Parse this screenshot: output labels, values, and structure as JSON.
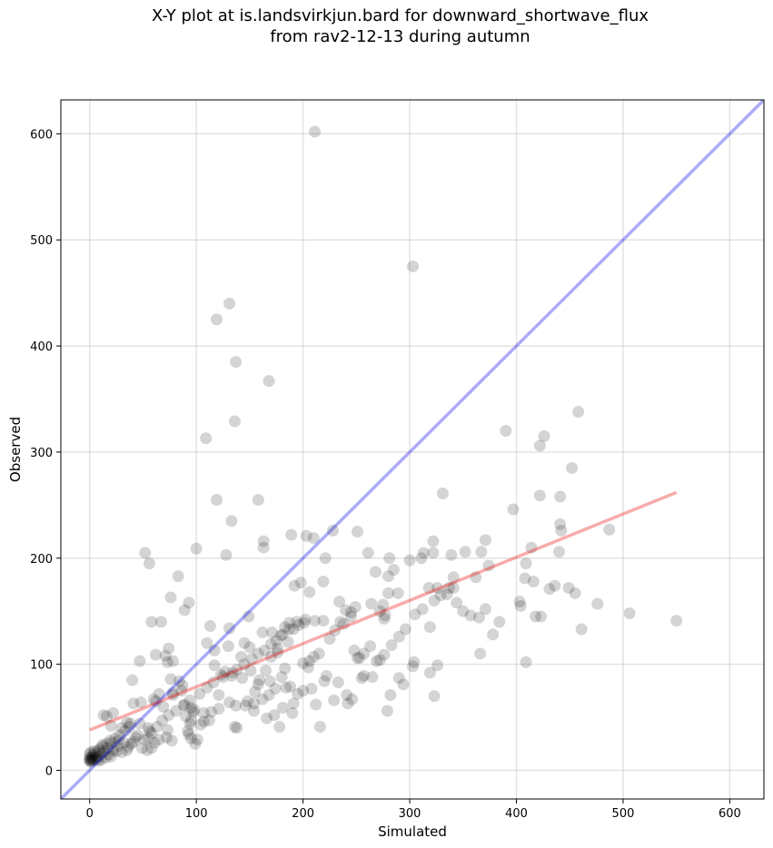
{
  "title_line1": "X-Y plot at is.landsvirkjun.bard for downward_shortwave_flux",
  "title_line2": "from rav2-12-13 during autumn",
  "chart_data": {
    "type": "scatter",
    "xlabel": "Simulated",
    "ylabel": "Observed",
    "xlim": [
      -27,
      632
    ],
    "ylim": [
      -27,
      632
    ],
    "xticks": [
      0,
      100,
      200,
      300,
      400,
      500,
      600
    ],
    "yticks": [
      0,
      100,
      200,
      300,
      400,
      500,
      600
    ],
    "grid": true,
    "colors": {
      "points": "#000000",
      "identity_line": "#0000ee",
      "fit_line": "#ee0000"
    },
    "identity_line": {
      "x": [
        -27,
        632
      ],
      "y": [
        -27,
        632
      ]
    },
    "fit_line": {
      "x": [
        0,
        550
      ],
      "y": [
        38,
        262
      ]
    },
    "points": [
      [
        211,
        602
      ],
      [
        303,
        475
      ],
      [
        131,
        440
      ],
      [
        119,
        425
      ],
      [
        137,
        385
      ],
      [
        168,
        367
      ],
      [
        136,
        329
      ],
      [
        109,
        313
      ],
      [
        458,
        338
      ],
      [
        390,
        320
      ],
      [
        426,
        315
      ],
      [
        422,
        306
      ],
      [
        452,
        285
      ],
      [
        397,
        246
      ],
      [
        422,
        259
      ],
      [
        441,
        258
      ],
      [
        331,
        261
      ],
      [
        119,
        255
      ],
      [
        158,
        255
      ],
      [
        133,
        235
      ],
      [
        441,
        232
      ],
      [
        442,
        226
      ],
      [
        228,
        226
      ],
      [
        251,
        225
      ],
      [
        487,
        227
      ],
      [
        163,
        216
      ],
      [
        163,
        210
      ],
      [
        189,
        222
      ],
      [
        203,
        221
      ],
      [
        210,
        219
      ],
      [
        371,
        217
      ],
      [
        322,
        216
      ],
      [
        414,
        210
      ],
      [
        100,
        209
      ],
      [
        52,
        205
      ],
      [
        56,
        195
      ],
      [
        128,
        203
      ],
      [
        221,
        200
      ],
      [
        261,
        205
      ],
      [
        281,
        200
      ],
      [
        300,
        198
      ],
      [
        311,
        200
      ],
      [
        313,
        205
      ],
      [
        322,
        205
      ],
      [
        339,
        203
      ],
      [
        352,
        206
      ],
      [
        367,
        206
      ],
      [
        409,
        195
      ],
      [
        440,
        206
      ],
      [
        374,
        193
      ],
      [
        408,
        181
      ],
      [
        416,
        178
      ],
      [
        362,
        182
      ],
      [
        341,
        182
      ],
      [
        318,
        172
      ],
      [
        326,
        172
      ],
      [
        341,
        172
      ],
      [
        335,
        166
      ],
      [
        323,
        160
      ],
      [
        289,
        167
      ],
      [
        280,
        167
      ],
      [
        268,
        187
      ],
      [
        280,
        183
      ],
      [
        285,
        189
      ],
      [
        192,
        174
      ],
      [
        198,
        177
      ],
      [
        206,
        168
      ],
      [
        219,
        178
      ],
      [
        234,
        159
      ],
      [
        249,
        154
      ],
      [
        245,
        149
      ],
      [
        240,
        151
      ],
      [
        275,
        156
      ],
      [
        264,
        157
      ],
      [
        272,
        150
      ],
      [
        277,
        146
      ],
      [
        276,
        143
      ],
      [
        235,
        140
      ],
      [
        219,
        141
      ],
      [
        211,
        141
      ],
      [
        202,
        142
      ],
      [
        201,
        139
      ],
      [
        196,
        137
      ],
      [
        187,
        139
      ],
      [
        183,
        135
      ],
      [
        191,
        133
      ],
      [
        179,
        127
      ],
      [
        186,
        121
      ],
      [
        176,
        115
      ],
      [
        176,
        111
      ],
      [
        170,
        107
      ],
      [
        162,
        130
      ],
      [
        171,
        130
      ],
      [
        149,
        145
      ],
      [
        145,
        120
      ],
      [
        150,
        116
      ],
      [
        131,
        134
      ],
      [
        113,
        136
      ],
      [
        83,
        183
      ],
      [
        93,
        158
      ],
      [
        89,
        151
      ],
      [
        76,
        163
      ],
      [
        58,
        140
      ],
      [
        67,
        140
      ],
      [
        71,
        108
      ],
      [
        73,
        102
      ],
      [
        62,
        109
      ],
      [
        74,
        115
      ],
      [
        78,
        103
      ],
      [
        87,
        80
      ],
      [
        76,
        86
      ],
      [
        84,
        84
      ],
      [
        86,
        75
      ],
      [
        65,
        72
      ],
      [
        60,
        67
      ],
      [
        40,
        85
      ],
      [
        47,
        103
      ],
      [
        41,
        63
      ],
      [
        48,
        64
      ],
      [
        62,
        65
      ],
      [
        69,
        60
      ],
      [
        78,
        71
      ],
      [
        78,
        73
      ],
      [
        89,
        62
      ],
      [
        95,
        59
      ],
      [
        97,
        55
      ],
      [
        95,
        47
      ],
      [
        90,
        51
      ],
      [
        94,
        44
      ],
      [
        104,
        43
      ],
      [
        112,
        47
      ],
      [
        114,
        55
      ],
      [
        121,
        58
      ],
      [
        137,
        61
      ],
      [
        131,
        64
      ],
      [
        148,
        65
      ],
      [
        154,
        63
      ],
      [
        162,
        67
      ],
      [
        155,
        74
      ],
      [
        168,
        71
      ],
      [
        174,
        77
      ],
      [
        188,
        79
      ],
      [
        184,
        78
      ],
      [
        191,
        63
      ],
      [
        181,
        59
      ],
      [
        190,
        54
      ],
      [
        200,
        75
      ],
      [
        208,
        77
      ],
      [
        220,
        84
      ],
      [
        233,
        83
      ],
      [
        241,
        71
      ],
      [
        246,
        67
      ],
      [
        257,
        89
      ],
      [
        255,
        87
      ],
      [
        265,
        88
      ],
      [
        290,
        87
      ],
      [
        294,
        81
      ],
      [
        303,
        98
      ],
      [
        304,
        102
      ],
      [
        319,
        92
      ],
      [
        326,
        99
      ],
      [
        323,
        70
      ],
      [
        279,
        56
      ],
      [
        282,
        71
      ],
      [
        216,
        41
      ],
      [
        178,
        41
      ],
      [
        136,
        41
      ],
      [
        138,
        40
      ],
      [
        121,
        71
      ],
      [
        107,
        54
      ],
      [
        107,
        46
      ],
      [
        98,
        57
      ],
      [
        92,
        37
      ],
      [
        93,
        34
      ],
      [
        95,
        30
      ],
      [
        99,
        25
      ],
      [
        101,
        29
      ],
      [
        73,
        38
      ],
      [
        77,
        28
      ],
      [
        72,
        31
      ],
      [
        65,
        29
      ],
      [
        61,
        26
      ],
      [
        58,
        21
      ],
      [
        54,
        19
      ],
      [
        49,
        21
      ],
      [
        55,
        30
      ],
      [
        58,
        35
      ],
      [
        55,
        40
      ],
      [
        47,
        44
      ],
      [
        43,
        31
      ],
      [
        39,
        25
      ],
      [
        35,
        19
      ],
      [
        30,
        17
      ],
      [
        25,
        18
      ],
      [
        20,
        13
      ],
      [
        15,
        12
      ],
      [
        11,
        10
      ],
      [
        8,
        9
      ],
      [
        6,
        13
      ],
      [
        4,
        10
      ],
      [
        2,
        12
      ],
      [
        1,
        8
      ],
      [
        0,
        9
      ],
      [
        0,
        10
      ],
      [
        1,
        11
      ],
      [
        2,
        9
      ],
      [
        3,
        14
      ],
      [
        5,
        16
      ],
      [
        8,
        18
      ],
      [
        12,
        22
      ],
      [
        16,
        25
      ],
      [
        19,
        28
      ],
      [
        24,
        30
      ],
      [
        28,
        33
      ],
      [
        33,
        37
      ],
      [
        37,
        41
      ],
      [
        38,
        44
      ],
      [
        22,
        54
      ],
      [
        16,
        51
      ],
      [
        20,
        42
      ],
      [
        13,
        52
      ],
      [
        30,
        40
      ],
      [
        35,
        45
      ],
      [
        26,
        23
      ],
      [
        22,
        19
      ],
      [
        18,
        15
      ],
      [
        14,
        18
      ],
      [
        11,
        16
      ],
      [
        9,
        13
      ],
      [
        6,
        11
      ],
      [
        3,
        10
      ],
      [
        0,
        12
      ],
      [
        0,
        15
      ],
      [
        1,
        17
      ],
      [
        4,
        18
      ],
      [
        9,
        20
      ],
      [
        12,
        24
      ],
      [
        17,
        21
      ],
      [
        21,
        26
      ],
      [
        27,
        28
      ],
      [
        32,
        26
      ],
      [
        36,
        22
      ],
      [
        41,
        27
      ],
      [
        45,
        33
      ],
      [
        51,
        29
      ],
      [
        56,
        37
      ],
      [
        63,
        41
      ],
      [
        68,
        47
      ],
      [
        74,
        52
      ],
      [
        81,
        56
      ],
      [
        88,
        61
      ],
      [
        94,
        66
      ],
      [
        103,
        72
      ],
      [
        110,
        78
      ],
      [
        116,
        83
      ],
      [
        123,
        90
      ],
      [
        127,
        93
      ],
      [
        134,
        92
      ],
      [
        138,
        95
      ],
      [
        145,
        100
      ],
      [
        152,
        105
      ],
      [
        158,
        110
      ],
      [
        164,
        113
      ],
      [
        170,
        119
      ],
      [
        175,
        122
      ],
      [
        181,
        128
      ],
      [
        187,
        133
      ],
      [
        194,
        140
      ],
      [
        200,
        101
      ],
      [
        206,
        103
      ],
      [
        210,
        107
      ],
      [
        215,
        110
      ],
      [
        225,
        124
      ],
      [
        230,
        132
      ],
      [
        238,
        138
      ],
      [
        245,
        145
      ],
      [
        251,
        106
      ],
      [
        257,
        110
      ],
      [
        263,
        117
      ],
      [
        269,
        103
      ],
      [
        276,
        109
      ],
      [
        283,
        118
      ],
      [
        290,
        126
      ],
      [
        296,
        133
      ],
      [
        305,
        147
      ],
      [
        312,
        152
      ],
      [
        319,
        135
      ],
      [
        329,
        165
      ],
      [
        337,
        172
      ],
      [
        344,
        158
      ],
      [
        350,
        150
      ],
      [
        357,
        146
      ],
      [
        365,
        144
      ],
      [
        371,
        152
      ],
      [
        378,
        128
      ],
      [
        384,
        140
      ],
      [
        403,
        159
      ],
      [
        404,
        155
      ],
      [
        409,
        102
      ],
      [
        418,
        145
      ],
      [
        423,
        145
      ],
      [
        431,
        171
      ],
      [
        436,
        174
      ],
      [
        449,
        172
      ],
      [
        455,
        167
      ],
      [
        461,
        133
      ],
      [
        476,
        157
      ],
      [
        506,
        148
      ],
      [
        550,
        141
      ],
      [
        366,
        110
      ],
      [
        248,
        113
      ],
      [
        253,
        106
      ],
      [
        272,
        104
      ],
      [
        222,
        89
      ],
      [
        205,
        97
      ],
      [
        183,
        96
      ],
      [
        165,
        94
      ],
      [
        159,
        85
      ],
      [
        143,
        87
      ],
      [
        133,
        89
      ],
      [
        125,
        88
      ],
      [
        117,
        99
      ],
      [
        110,
        120
      ],
      [
        117,
        113
      ],
      [
        130,
        117
      ],
      [
        142,
        107
      ],
      [
        151,
        94
      ],
      [
        158,
        81
      ],
      [
        169,
        84
      ],
      [
        180,
        88
      ],
      [
        195,
        72
      ],
      [
        212,
        62
      ],
      [
        229,
        66
      ],
      [
        242,
        63
      ],
      [
        173,
        52
      ],
      [
        166,
        49
      ],
      [
        154,
        56
      ],
      [
        146,
        61
      ]
    ]
  }
}
